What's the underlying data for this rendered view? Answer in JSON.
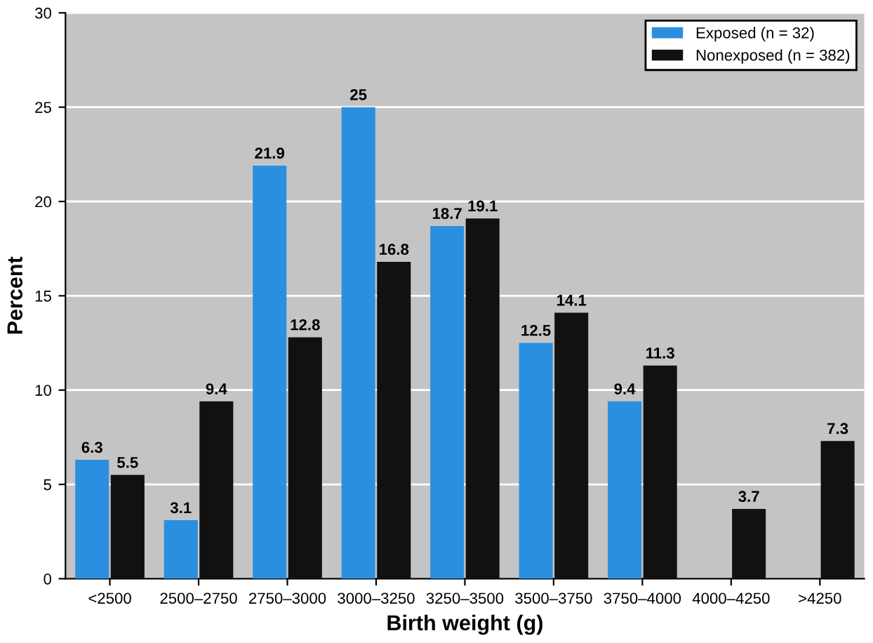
{
  "chart_data": {
    "type": "bar",
    "xlabel": "Birth weight (g)",
    "ylabel": "Percent",
    "categories": [
      "<2500",
      "2500–2750",
      "2750–3000",
      "3000–3250",
      "3250–3500",
      "3500–3750",
      "3750–4000",
      "4000–4250",
      ">4250"
    ],
    "series": [
      {
        "name": "Exposed (n = 32)",
        "color": "#2b8fe0",
        "values": [
          6.3,
          3.1,
          21.9,
          25,
          18.7,
          12.5,
          9.4,
          null,
          null
        ]
      },
      {
        "name": "Nonexposed (n = 382)",
        "color": "#111111",
        "values": [
          5.5,
          9.4,
          12.8,
          16.8,
          19.1,
          14.1,
          11.3,
          3.7,
          7.3
        ]
      }
    ],
    "ylim": [
      0,
      30
    ],
    "yticks": [
      0,
      5,
      10,
      15,
      20,
      25,
      30
    ],
    "grid": "y",
    "legend": "top right",
    "data_labels": true
  }
}
